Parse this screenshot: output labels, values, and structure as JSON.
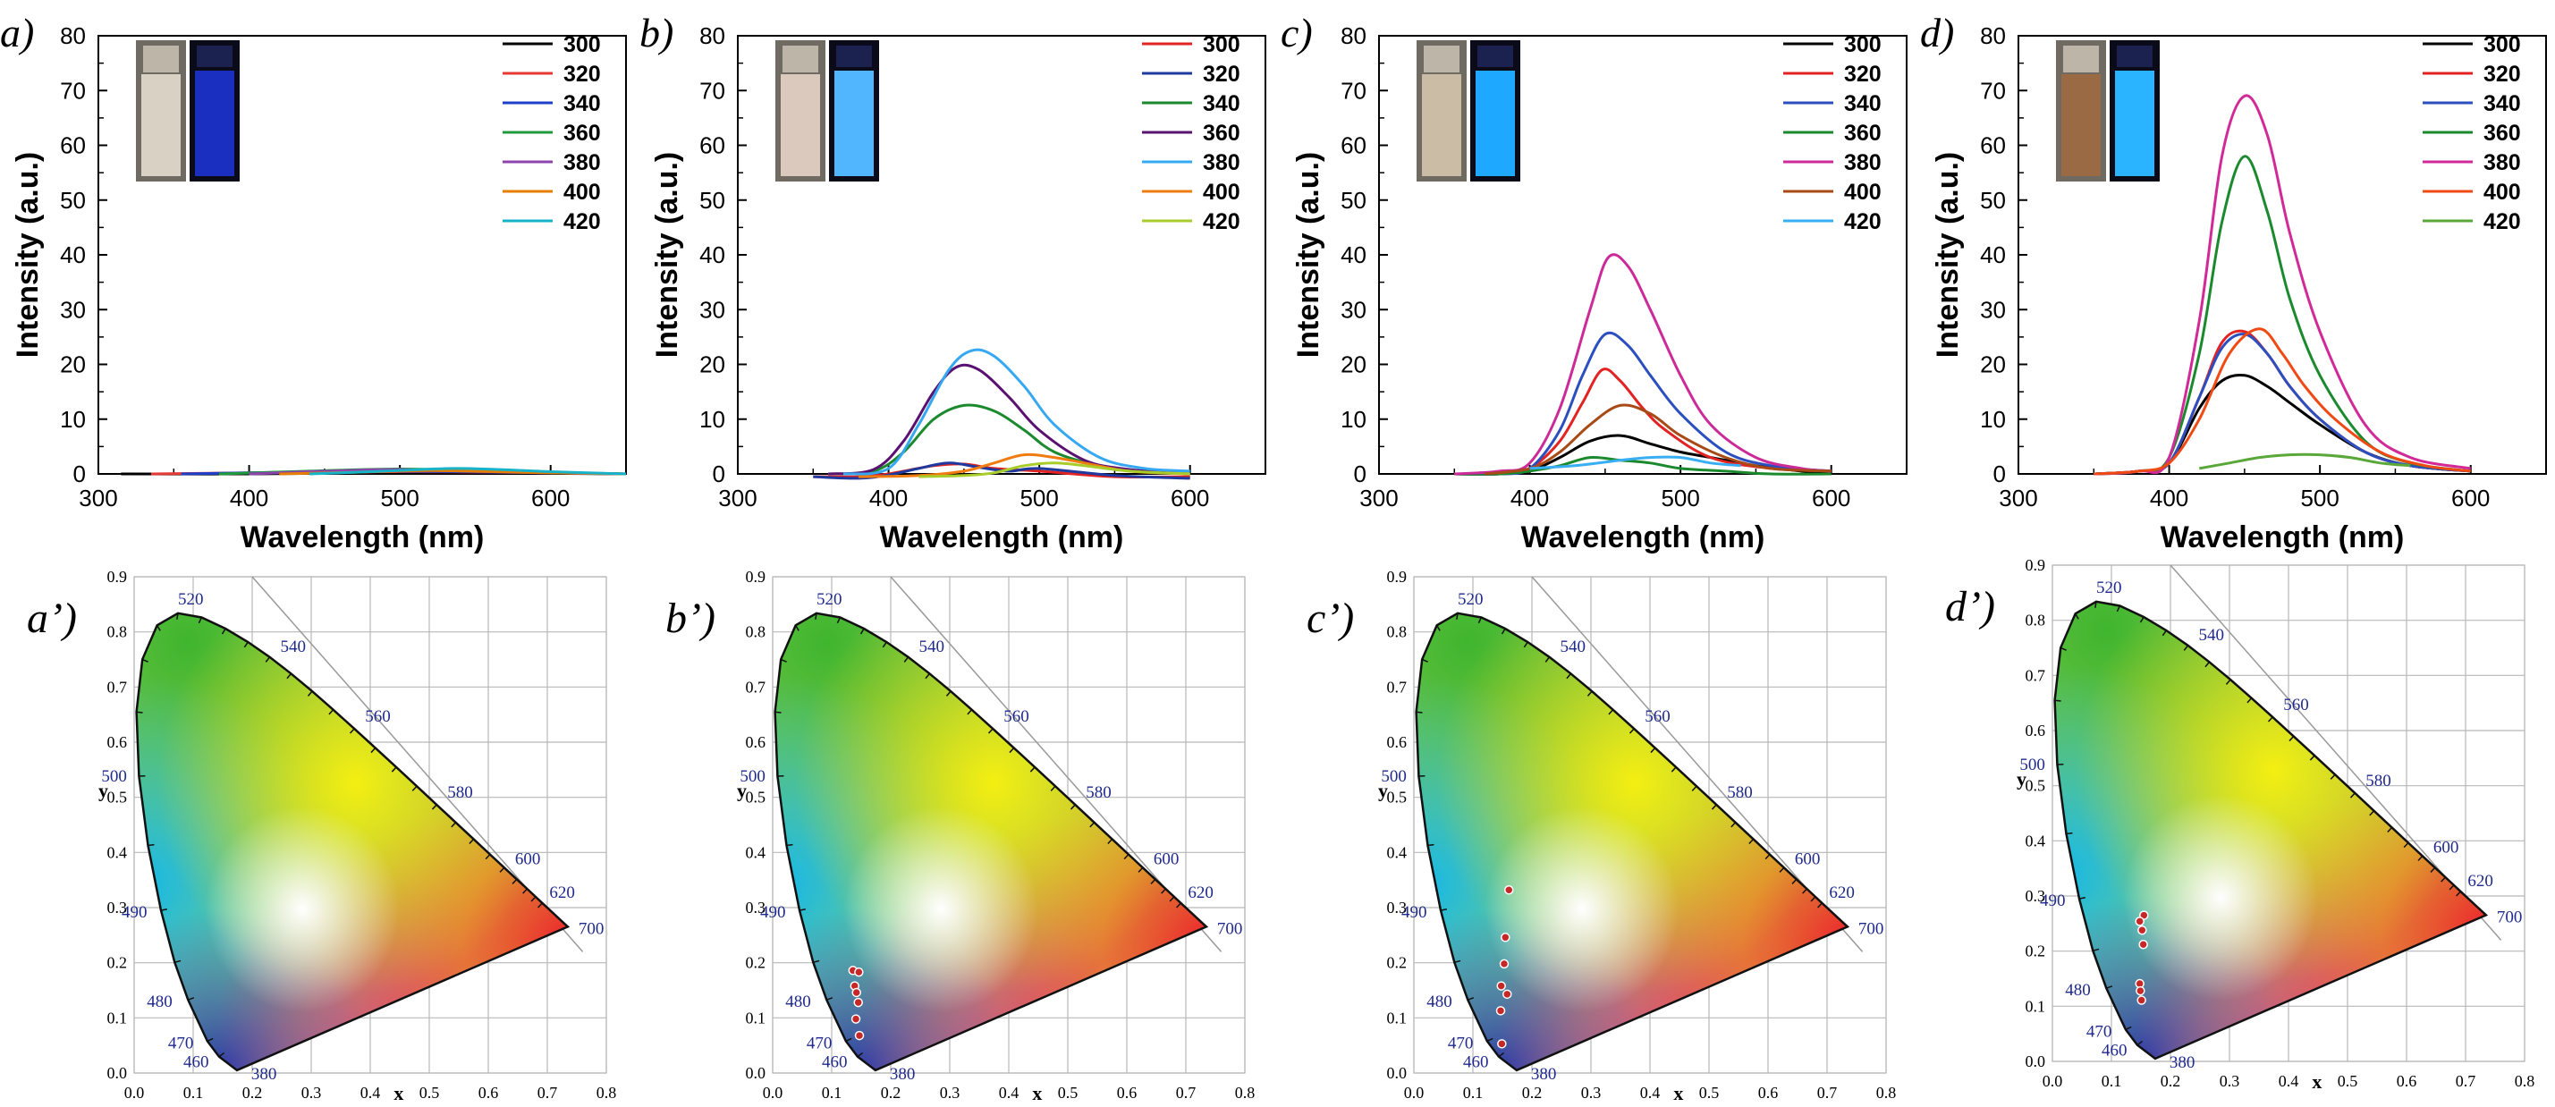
{
  "figure": {
    "colors": {
      "axis": "#000000",
      "grid": "#b8b8b8",
      "wavelength_label": "#1f2a8c",
      "cie_point": "#c62828",
      "series": {
        "a": [
          "#000000",
          "#e53935",
          "#1e40c8",
          "#1f9a3c",
          "#8e44ad",
          "#e67e00",
          "#16b3c9"
        ],
        "b": [
          "#e32222",
          "#1f3a9e",
          "#1b8a2e",
          "#5a1172",
          "#36a8f2",
          "#f07c10",
          "#a8cc2a"
        ],
        "c": [
          "#000000",
          "#e32222",
          "#2c4fbf",
          "#1b8a2e",
          "#cc2a98",
          "#a84a16",
          "#3aaef2"
        ],
        "d": [
          "#000000",
          "#e32222",
          "#2c4fbf",
          "#1b8a2e",
          "#d12a98",
          "#f04a14",
          "#5aa83a"
        ]
      }
    },
    "vials": [
      {
        "daylight": "#d9d2c4",
        "uv": "#1a2fc0"
      },
      {
        "daylight": "#dcc9bd",
        "uv": "#52b6ff"
      },
      {
        "daylight": "#cbbca6",
        "uv": "#1ea8ff"
      },
      {
        "daylight": "#9a6a44",
        "uv": "#2ab4ff"
      }
    ]
  },
  "chart_data": [
    {
      "type": "line",
      "panel_label": "a)",
      "xlabel": "Wavelength (nm)",
      "ylabel": "Intensity (a.u.)",
      "xlim": [
        300,
        650
      ],
      "ylim": [
        0,
        80
      ],
      "xticks": [
        "300",
        "400",
        "500",
        "600"
      ],
      "yticks": [
        "0",
        "10",
        "20",
        "30",
        "40",
        "50",
        "60",
        "70",
        "80"
      ],
      "legend_position": "top-right",
      "series": [
        {
          "name": "300",
          "x": [
            315,
            400,
            500,
            600,
            650
          ],
          "y": [
            0,
            0,
            0.2,
            0.1,
            0
          ]
        },
        {
          "name": "320",
          "x": [
            335,
            400,
            500,
            600,
            650
          ],
          "y": [
            0,
            0.2,
            0.4,
            0.2,
            0
          ]
        },
        {
          "name": "340",
          "x": [
            355,
            420,
            480,
            540,
            650
          ],
          "y": [
            0,
            0.3,
            0.5,
            0.4,
            0
          ]
        },
        {
          "name": "360",
          "x": [
            380,
            440,
            500,
            560,
            650
          ],
          "y": [
            0,
            0.5,
            0.9,
            0.5,
            0
          ]
        },
        {
          "name": "380",
          "x": [
            400,
            450,
            500,
            560,
            650
          ],
          "y": [
            0,
            0.5,
            0.8,
            0.4,
            0
          ]
        },
        {
          "name": "400",
          "x": [
            420,
            470,
            520,
            580,
            650
          ],
          "y": [
            0,
            0.3,
            0.6,
            0.3,
            0
          ]
        },
        {
          "name": "420",
          "x": [
            440,
            490,
            540,
            600,
            650
          ],
          "y": [
            0,
            0.5,
            1.0,
            0.4,
            0
          ]
        }
      ]
    },
    {
      "type": "line",
      "panel_label": "b)",
      "xlabel": "Wavelength (nm)",
      "ylabel": "Intensity (a.u.)",
      "xlim": [
        300,
        650
      ],
      "ylim": [
        0,
        80
      ],
      "xticks": [
        "300",
        "400",
        "500",
        "600"
      ],
      "yticks": [
        "0",
        "10",
        "20",
        "30",
        "40",
        "50",
        "60",
        "70",
        "80"
      ],
      "legend_position": "top-right",
      "series": [
        {
          "name": "300",
          "x": [
            350,
            380,
            400,
            430,
            450,
            470,
            500,
            550,
            600
          ],
          "y": [
            -0.5,
            -0.5,
            0,
            1.5,
            1.8,
            1,
            0.5,
            -0.5,
            -0.5
          ]
        },
        {
          "name": "320",
          "x": [
            350,
            380,
            400,
            420,
            440,
            460,
            480,
            500,
            550,
            600
          ],
          "y": [
            -0.5,
            -0.8,
            -0.2,
            1,
            2,
            1.2,
            0.5,
            1,
            -0.3,
            -0.8
          ]
        },
        {
          "name": "340",
          "x": [
            360,
            390,
            410,
            430,
            450,
            470,
            490,
            510,
            540,
            570,
            600
          ],
          "y": [
            0,
            0.5,
            4,
            10,
            12.5,
            11.5,
            8,
            4,
            1.5,
            0.5,
            0
          ]
        },
        {
          "name": "360",
          "x": [
            360,
            390,
            410,
            430,
            445,
            460,
            480,
            500,
            530,
            560,
            600
          ],
          "y": [
            0,
            0.8,
            6,
            15,
            19.5,
            19,
            14,
            8,
            2.5,
            0.8,
            0
          ]
        },
        {
          "name": "380",
          "x": [
            370,
            400,
            420,
            440,
            455,
            470,
            490,
            510,
            540,
            570,
            600
          ],
          "y": [
            0,
            1,
            9,
            19,
            22.5,
            21.5,
            16,
            9,
            3,
            1,
            0.5
          ]
        },
        {
          "name": "400",
          "x": [
            380,
            420,
            450,
            470,
            490,
            510,
            530,
            560,
            600
          ],
          "y": [
            -0.5,
            -0.3,
            0.5,
            2,
            3.5,
            3,
            2,
            0.5,
            0
          ]
        },
        {
          "name": "420",
          "x": [
            420,
            450,
            470,
            490,
            510,
            530,
            560,
            600
          ],
          "y": [
            -0.5,
            -0.3,
            0.2,
            1.5,
            2,
            1.5,
            0.5,
            0
          ]
        }
      ]
    },
    {
      "type": "line",
      "panel_label": "c)",
      "xlabel": "Wavelength (nm)",
      "ylabel": "Intensity (a.u.)",
      "xlim": [
        300,
        650
      ],
      "ylim": [
        0,
        80
      ],
      "xticks": [
        "300",
        "400",
        "500",
        "600"
      ],
      "yticks": [
        "0",
        "10",
        "20",
        "30",
        "40",
        "50",
        "60",
        "70",
        "80"
      ],
      "legend_position": "top-right",
      "series": [
        {
          "name": "300",
          "x": [
            350,
            380,
            400,
            420,
            440,
            460,
            480,
            500,
            520,
            550,
            580,
            600
          ],
          "y": [
            0,
            0,
            0.5,
            3,
            6,
            7,
            5.5,
            4,
            3,
            1.5,
            0.5,
            0
          ]
        },
        {
          "name": "320",
          "x": [
            350,
            380,
            400,
            420,
            435,
            448,
            460,
            475,
            490,
            520,
            560,
            600
          ],
          "y": [
            0,
            0,
            1,
            6,
            13,
            19,
            17,
            12,
            8,
            3,
            1,
            0.5
          ]
        },
        {
          "name": "340",
          "x": [
            350,
            380,
            400,
            420,
            435,
            450,
            465,
            480,
            500,
            530,
            560,
            600
          ],
          "y": [
            0,
            0,
            1,
            8,
            18,
            25.5,
            23.5,
            18,
            11,
            4,
            1.5,
            0.5
          ]
        },
        {
          "name": "360",
          "x": [
            350,
            380,
            400,
            420,
            440,
            460,
            480,
            500,
            530,
            560,
            600
          ],
          "y": [
            0,
            0,
            0.5,
            1.5,
            3,
            2.5,
            2,
            1,
            0.5,
            0,
            0
          ]
        },
        {
          "name": "380",
          "x": [
            350,
            380,
            400,
            420,
            440,
            452,
            465,
            480,
            500,
            520,
            550,
            580,
            600
          ],
          "y": [
            0,
            0.5,
            2,
            12,
            30,
            39.5,
            38,
            30,
            18,
            9,
            3,
            1,
            0.5
          ]
        },
        {
          "name": "400",
          "x": [
            370,
            400,
            420,
            440,
            460,
            480,
            500,
            530,
            560,
            600
          ],
          "y": [
            0,
            1,
            4,
            9,
            12.5,
            11,
            7,
            3,
            1,
            0.5
          ]
        },
        {
          "name": "420",
          "x": [
            400,
            430,
            460,
            480,
            500,
            520,
            540
          ],
          "y": [
            1,
            1.5,
            2.5,
            3,
            3,
            2,
            1.5
          ]
        }
      ]
    },
    {
      "type": "line",
      "panel_label": "d)",
      "xlabel": "Wavelength (nm)",
      "ylabel": "Intensity (a.u.)",
      "xlim": [
        300,
        650
      ],
      "ylim": [
        0,
        80
      ],
      "xticks": [
        "300",
        "400",
        "500",
        "600"
      ],
      "yticks": [
        "0",
        "10",
        "20",
        "30",
        "40",
        "50",
        "60",
        "70",
        "80"
      ],
      "legend_position": "top-right",
      "series": [
        {
          "name": "300",
          "x": [
            350,
            380,
            400,
            420,
            435,
            450,
            465,
            480,
            500,
            530,
            560,
            600
          ],
          "y": [
            0,
            0.5,
            2,
            12,
            17,
            18,
            16,
            13,
            9,
            4,
            1.5,
            0.5
          ]
        },
        {
          "name": "320",
          "x": [
            350,
            380,
            400,
            420,
            435,
            450,
            465,
            480,
            500,
            530,
            560,
            600
          ],
          "y": [
            0,
            0.5,
            2,
            14,
            24,
            26,
            22,
            16,
            10,
            4,
            1.5,
            0.5
          ]
        },
        {
          "name": "340",
          "x": [
            350,
            380,
            400,
            420,
            435,
            450,
            465,
            480,
            500,
            530,
            560,
            600
          ],
          "y": [
            0,
            0.5,
            2,
            14,
            23,
            25.5,
            22,
            16,
            10,
            4,
            1.5,
            0.5
          ]
        },
        {
          "name": "360",
          "x": [
            350,
            380,
            400,
            420,
            435,
            450,
            465,
            480,
            500,
            530,
            560,
            600
          ],
          "y": [
            0,
            0.5,
            3,
            22,
            46,
            58,
            48,
            32,
            18,
            6,
            2,
            0.5
          ]
        },
        {
          "name": "380",
          "x": [
            350,
            380,
            400,
            420,
            435,
            450,
            465,
            480,
            500,
            530,
            560,
            600
          ],
          "y": [
            0,
            0.5,
            3,
            28,
            58,
            69,
            62,
            44,
            26,
            9,
            3,
            1
          ]
        },
        {
          "name": "400",
          "x": [
            350,
            380,
            400,
            420,
            440,
            460,
            475,
            490,
            510,
            540,
            570,
            600
          ],
          "y": [
            0,
            0.5,
            2,
            10,
            22,
            26.5,
            22,
            16,
            10,
            4,
            1.5,
            0.5
          ]
        },
        {
          "name": "420",
          "x": [
            420,
            440,
            460,
            480,
            500,
            520,
            540,
            560
          ],
          "y": [
            1,
            2,
            3,
            3.5,
            3.5,
            3,
            2,
            1.5
          ]
        }
      ]
    },
    {
      "type": "scatter",
      "panel_label": "a’)",
      "xlabel": "x",
      "ylabel": "y",
      "xlim": [
        0,
        0.8
      ],
      "ylim": [
        0,
        0.9
      ],
      "xticks": [
        "0.0",
        "0.1",
        "0.2",
        "0.3",
        "0.4",
        "0.5",
        "0.6",
        "0.7",
        "0.8"
      ],
      "yticks": [
        "0.0",
        "0.1",
        "0.2",
        "0.3",
        "0.4",
        "0.5",
        "0.6",
        "0.7",
        "0.8",
        "0.9"
      ],
      "wavelength_labels": [
        "380",
        "460",
        "470",
        "480",
        "490",
        "500",
        "520",
        "540",
        "560",
        "580",
        "600",
        "620",
        "700"
      ],
      "points": []
    },
    {
      "type": "scatter",
      "panel_label": "b’)",
      "xlabel": "x",
      "ylabel": "y",
      "xlim": [
        0,
        0.8
      ],
      "ylim": [
        0,
        0.9
      ],
      "xticks": [
        "0.0",
        "0.1",
        "0.2",
        "0.3",
        "0.4",
        "0.5",
        "0.6",
        "0.7",
        "0.8"
      ],
      "yticks": [
        "0.0",
        "0.1",
        "0.2",
        "0.3",
        "0.4",
        "0.5",
        "0.6",
        "0.7",
        "0.8",
        "0.9"
      ],
      "wavelength_labels": [
        "380",
        "460",
        "470",
        "480",
        "490",
        "500",
        "520",
        "540",
        "560",
        "580",
        "600",
        "620",
        "700"
      ],
      "points": [
        {
          "x": 0.136,
          "y": 0.186
        },
        {
          "x": 0.146,
          "y": 0.183
        },
        {
          "x": 0.139,
          "y": 0.158
        },
        {
          "x": 0.142,
          "y": 0.146
        },
        {
          "x": 0.145,
          "y": 0.128
        },
        {
          "x": 0.141,
          "y": 0.098
        },
        {
          "x": 0.147,
          "y": 0.068
        }
      ]
    },
    {
      "type": "scatter",
      "panel_label": "c’)",
      "xlabel": "x",
      "ylabel": "y",
      "xlim": [
        0,
        0.8
      ],
      "ylim": [
        0,
        0.9
      ],
      "xticks": [
        "0.0",
        "0.1",
        "0.2",
        "0.3",
        "0.4",
        "0.5",
        "0.6",
        "0.7",
        "0.8"
      ],
      "yticks": [
        "0.0",
        "0.1",
        "0.2",
        "0.3",
        "0.4",
        "0.5",
        "0.6",
        "0.7",
        "0.8",
        "0.9"
      ],
      "wavelength_labels": [
        "380",
        "460",
        "470",
        "480",
        "490",
        "500",
        "520",
        "540",
        "560",
        "580",
        "600",
        "620",
        "700"
      ],
      "points": [
        {
          "x": 0.161,
          "y": 0.332
        },
        {
          "x": 0.155,
          "y": 0.246
        },
        {
          "x": 0.153,
          "y": 0.198
        },
        {
          "x": 0.148,
          "y": 0.158
        },
        {
          "x": 0.158,
          "y": 0.143
        },
        {
          "x": 0.147,
          "y": 0.113
        },
        {
          "x": 0.149,
          "y": 0.053
        }
      ]
    },
    {
      "type": "scatter",
      "panel_label": "d’)",
      "xlabel": "x",
      "ylabel": "y",
      "xlim": [
        0,
        0.8
      ],
      "ylim": [
        0,
        0.9
      ],
      "xticks": [
        "0.0",
        "0.1",
        "0.2",
        "0.3",
        "0.4",
        "0.5",
        "0.6",
        "0.7",
        "0.8"
      ],
      "yticks": [
        "0.0",
        "0.1",
        "0.2",
        "0.3",
        "0.4",
        "0.5",
        "0.6",
        "0.7",
        "0.8",
        "0.9"
      ],
      "wavelength_labels": [
        "380",
        "460",
        "470",
        "480",
        "490",
        "500",
        "520",
        "540",
        "560",
        "580",
        "600",
        "620",
        "700"
      ],
      "points": [
        {
          "x": 0.155,
          "y": 0.265
        },
        {
          "x": 0.148,
          "y": 0.254
        },
        {
          "x": 0.152,
          "y": 0.238
        },
        {
          "x": 0.154,
          "y": 0.212
        },
        {
          "x": 0.148,
          "y": 0.141
        },
        {
          "x": 0.149,
          "y": 0.128
        },
        {
          "x": 0.151,
          "y": 0.111
        }
      ]
    }
  ]
}
